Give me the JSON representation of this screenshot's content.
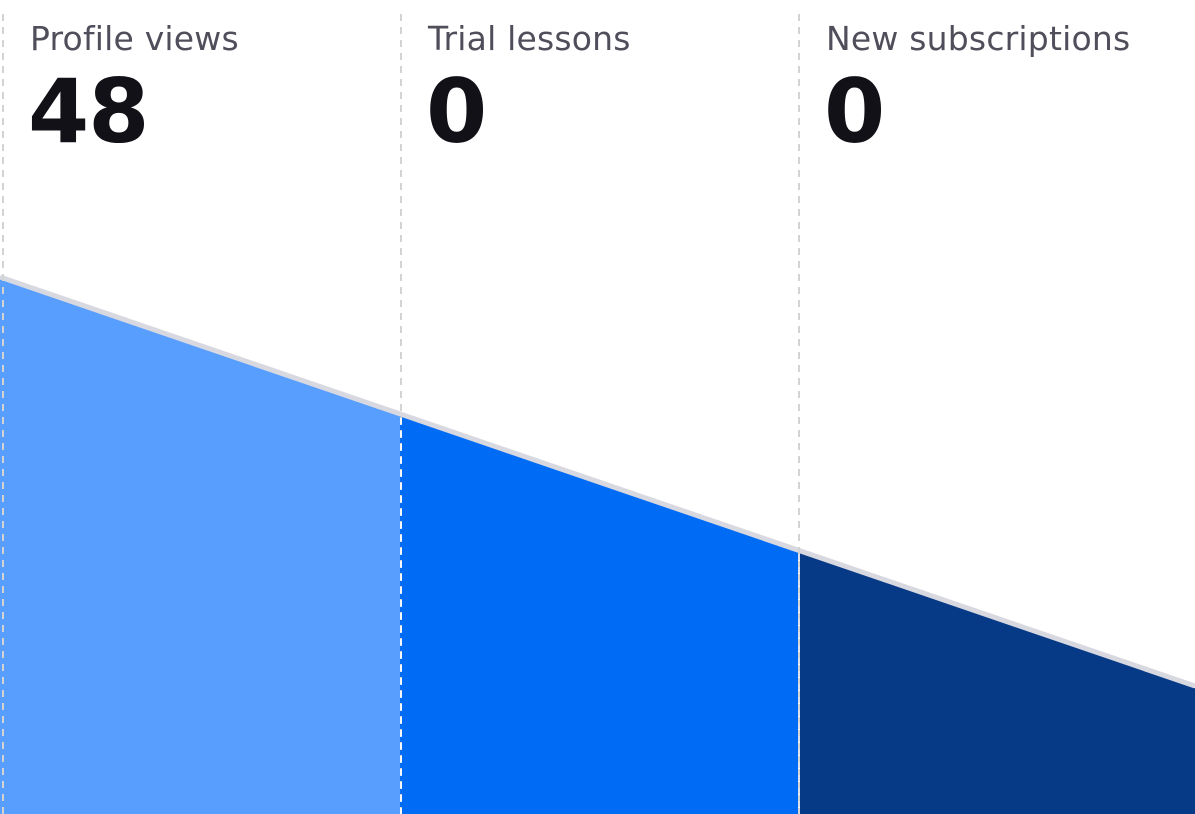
{
  "funnel": {
    "stages": [
      {
        "label": "Profile views",
        "value": "48",
        "color": "#579EFF"
      },
      {
        "label": "Trial lessons",
        "value": "0",
        "color": "#006BF5"
      },
      {
        "label": "New subscriptions",
        "value": "0",
        "color": "#063A87"
      }
    ],
    "divider_color": "#D3D3D3",
    "edge_color": "#D8D8E0"
  }
}
